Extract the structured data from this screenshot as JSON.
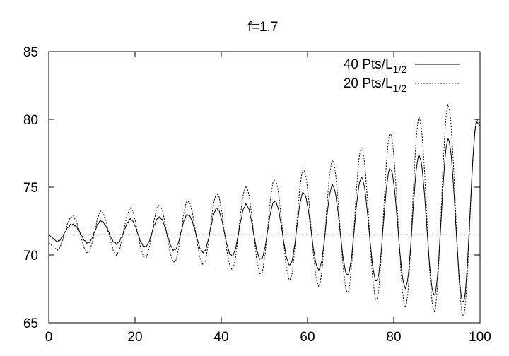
{
  "chart_data": {
    "type": "line",
    "title": "f=1.7",
    "xlabel": "",
    "ylabel": "",
    "xlim": [
      0,
      100
    ],
    "ylim": [
      65,
      85
    ],
    "xticks": [
      0,
      20,
      40,
      60,
      80,
      100
    ],
    "yticks": [
      65,
      70,
      75,
      80,
      85
    ],
    "grid": false,
    "legend_position": "top-right",
    "reference_line": {
      "y": 71.5,
      "style": "dashed",
      "color": "#888888"
    },
    "oscillation": {
      "period": 6.7,
      "first_peak_x": 5.5,
      "sample_step": 0.25
    },
    "series": [
      {
        "name": "40 Pts/L",
        "name_sub": "1/2",
        "style": "solid",
        "color": "#000000",
        "peaks": [
          [
            5.5,
            72.3
          ],
          [
            12.2,
            72.5
          ],
          [
            18.9,
            72.6
          ],
          [
            25.6,
            72.8
          ],
          [
            32.3,
            73.0
          ],
          [
            39.0,
            73.4
          ],
          [
            45.7,
            73.7
          ],
          [
            52.4,
            74.0
          ],
          [
            59.1,
            74.6
          ],
          [
            65.8,
            75.1
          ],
          [
            72.5,
            75.7
          ],
          [
            79.2,
            76.4
          ],
          [
            85.9,
            77.3
          ],
          [
            92.6,
            78.5
          ],
          [
            99.3,
            79.8
          ]
        ],
        "troughs": [
          [
            2.0,
            71.0
          ],
          [
            9.0,
            70.9
          ],
          [
            15.7,
            70.8
          ],
          [
            22.4,
            70.6
          ],
          [
            29.1,
            70.4
          ],
          [
            35.8,
            70.2
          ],
          [
            42.5,
            69.9
          ],
          [
            49.2,
            69.7
          ],
          [
            55.9,
            69.3
          ],
          [
            62.6,
            68.9
          ],
          [
            69.3,
            68.5
          ],
          [
            76.0,
            68.1
          ],
          [
            82.7,
            67.6
          ],
          [
            89.4,
            67.0
          ],
          [
            96.1,
            66.5
          ]
        ]
      },
      {
        "name": "20 Pts/L",
        "name_sub": "1/2",
        "style": "dotted",
        "color": "#000000",
        "peaks": [
          [
            5.5,
            72.9
          ],
          [
            12.2,
            73.2
          ],
          [
            18.9,
            73.4
          ],
          [
            25.6,
            73.7
          ],
          [
            32.3,
            74.0
          ],
          [
            39.0,
            74.5
          ],
          [
            45.7,
            75.0
          ],
          [
            52.4,
            75.6
          ],
          [
            59.1,
            76.3
          ],
          [
            65.8,
            76.9
          ],
          [
            72.5,
            77.9
          ],
          [
            79.2,
            79.0
          ],
          [
            85.9,
            80.1
          ],
          [
            92.6,
            81.0
          ],
          [
            99.3,
            80.0
          ]
        ],
        "troughs": [
          [
            2.0,
            70.4
          ],
          [
            9.0,
            70.2
          ],
          [
            15.7,
            70.0
          ],
          [
            22.4,
            69.8
          ],
          [
            29.1,
            69.5
          ],
          [
            35.8,
            69.3
          ],
          [
            42.5,
            68.9
          ],
          [
            49.2,
            68.6
          ],
          [
            55.9,
            68.2
          ],
          [
            62.6,
            67.7
          ],
          [
            69.3,
            67.2
          ],
          [
            76.0,
            66.7
          ],
          [
            82.7,
            66.2
          ],
          [
            89.4,
            65.8
          ],
          [
            96.1,
            65.5
          ]
        ]
      }
    ]
  }
}
